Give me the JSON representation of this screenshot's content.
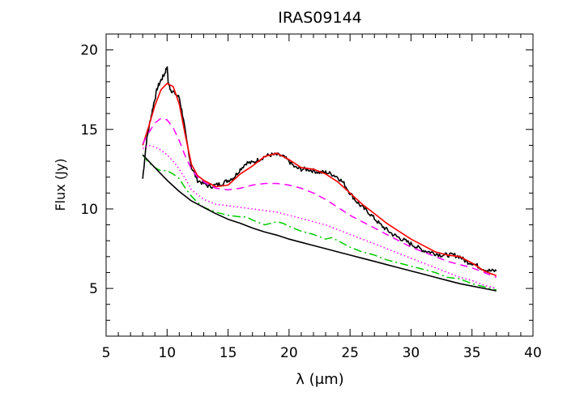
{
  "chart_data": {
    "type": "line",
    "title": "IRAS09144",
    "xlabel": "λ (μm)",
    "ylabel": "Flux (Jy)",
    "xlim": [
      5,
      40
    ],
    "ylim": [
      2,
      21
    ],
    "xticks": [
      5,
      10,
      15,
      20,
      25,
      30,
      35,
      40
    ],
    "yticks": [
      5,
      10,
      15,
      20
    ],
    "grid": false,
    "legend": "none",
    "series": [
      {
        "color": "#000000",
        "style": "solid",
        "noisy": true,
        "x": [
          8.0,
          8.3,
          8.6,
          8.9,
          9.2,
          9.5,
          9.8,
          10.0,
          10.1,
          10.3,
          10.6,
          11.0,
          11.3,
          11.6,
          12.0,
          12.5,
          13.0,
          13.5,
          14.0,
          14.5,
          15.0,
          15.5,
          16.0,
          16.5,
          17.0,
          17.5,
          18.0,
          18.5,
          19.0,
          19.5,
          20.0,
          20.5,
          21.0,
          21.5,
          22.0,
          22.5,
          23.0,
          23.5,
          24.0,
          24.5,
          25.0,
          25.5,
          26.0,
          26.5,
          27.0,
          27.5,
          28.0,
          28.5,
          29.0,
          29.5,
          30.0,
          30.5,
          31.0,
          31.5,
          32.0,
          32.5,
          33.0,
          33.5,
          34.0,
          34.5,
          35.0,
          35.5,
          36.0,
          36.5,
          37.0
        ],
        "y": [
          11.9,
          14.2,
          15.5,
          16.6,
          17.6,
          18.1,
          18.5,
          19.0,
          17.9,
          17.5,
          17.3,
          17.0,
          15.8,
          14.3,
          12.6,
          11.8,
          11.6,
          11.4,
          11.5,
          11.6,
          11.8,
          12.0,
          12.5,
          12.9,
          12.9,
          13.1,
          13.3,
          13.4,
          13.4,
          13.3,
          13.0,
          12.6,
          12.5,
          12.5,
          12.4,
          12.3,
          12.3,
          12.2,
          12.0,
          11.6,
          11.0,
          10.5,
          10.1,
          9.8,
          9.4,
          9.0,
          8.7,
          8.4,
          8.2,
          8.0,
          7.8,
          7.6,
          7.4,
          7.3,
          7.2,
          7.1,
          7.1,
          7.1,
          7.0,
          6.7,
          6.6,
          6.4,
          6.2,
          6.1,
          6.1
        ]
      },
      {
        "color": "#ff0000",
        "style": "solid",
        "x": [
          8.0,
          8.5,
          9.0,
          9.5,
          10.0,
          10.5,
          11.0,
          11.5,
          12.0,
          12.5,
          13.0,
          14.0,
          15.0,
          16.0,
          17.0,
          18.0,
          19.0,
          20.0,
          21.0,
          22.0,
          23.0,
          24.0,
          25.0,
          26.0,
          27.0,
          28.0,
          29.0,
          30.0,
          31.0,
          32.0,
          33.0,
          34.0,
          35.0,
          36.0,
          37.0
        ],
        "y": [
          14.0,
          15.2,
          16.5,
          17.5,
          17.9,
          17.7,
          16.6,
          14.6,
          12.8,
          12.1,
          11.8,
          11.4,
          11.5,
          12.2,
          12.7,
          13.3,
          13.5,
          13.1,
          12.6,
          12.5,
          12.2,
          11.7,
          11.0,
          10.3,
          9.7,
          9.1,
          8.6,
          8.1,
          7.7,
          7.3,
          7.1,
          7.0,
          6.6,
          6.1,
          5.8
        ]
      },
      {
        "color": "#ff00ff",
        "style": "dashed",
        "x": [
          8.0,
          8.5,
          9.0,
          9.5,
          10.0,
          10.5,
          11.0,
          11.5,
          12.0,
          12.5,
          13.0,
          14.0,
          15.0,
          16.0,
          17.0,
          18.0,
          19.0,
          20.0,
          21.0,
          22.0,
          23.0,
          24.0,
          25.0,
          26.0,
          27.0,
          28.0,
          29.0,
          30.0,
          31.0,
          32.0,
          33.0,
          34.0,
          35.0,
          36.0,
          37.0
        ],
        "y": [
          14.1,
          14.8,
          15.4,
          15.7,
          15.6,
          15.1,
          14.3,
          13.3,
          12.5,
          12.0,
          11.7,
          11.3,
          11.2,
          11.3,
          11.5,
          11.6,
          11.6,
          11.5,
          11.3,
          11.0,
          10.6,
          10.1,
          9.6,
          9.2,
          8.8,
          8.4,
          8.0,
          7.6,
          7.3,
          7.0,
          6.7,
          6.5,
          6.3,
          6.0,
          5.7
        ]
      },
      {
        "color": "#ff00ff",
        "style": "dotted",
        "x": [
          8.0,
          8.5,
          9.0,
          9.5,
          10.0,
          10.5,
          11.0,
          11.5,
          12.0,
          13.0,
          14.0,
          15.0,
          16.0,
          17.0,
          18.0,
          19.0,
          20.0,
          21.0,
          22.0,
          23.0,
          24.0,
          25.0,
          26.0,
          27.0,
          28.0,
          29.0,
          30.0,
          31.0,
          32.0,
          33.0,
          34.0,
          35.0,
          36.0,
          37.0
        ],
        "y": [
          13.8,
          14.0,
          13.9,
          13.7,
          13.4,
          13.0,
          12.5,
          11.9,
          11.2,
          10.6,
          10.3,
          10.2,
          10.1,
          10.0,
          9.9,
          9.8,
          9.6,
          9.4,
          9.2,
          9.0,
          8.7,
          8.4,
          8.1,
          7.8,
          7.5,
          7.2,
          6.9,
          6.6,
          6.3,
          6.0,
          5.7,
          5.5,
          5.2,
          5.0
        ]
      },
      {
        "color": "#00cc00",
        "style": "dashdot",
        "x": [
          8.0,
          8.5,
          9.0,
          9.5,
          10.0,
          10.5,
          11.0,
          11.5,
          12.0,
          12.5,
          13.0,
          14.0,
          15.0,
          16.0,
          16.5,
          17.0,
          18.0,
          19.0,
          19.5,
          20.0,
          21.0,
          22.0,
          23.0,
          23.5,
          24.0,
          25.0,
          26.0,
          27.0,
          28.0,
          29.0,
          30.0,
          31.0,
          32.0,
          33.0,
          34.0,
          35.0,
          36.0,
          37.0
        ],
        "y": [
          13.4,
          12.9,
          12.6,
          12.4,
          12.4,
          12.2,
          11.9,
          11.3,
          10.8,
          10.4,
          10.1,
          9.8,
          9.6,
          9.5,
          9.5,
          9.3,
          9.0,
          9.2,
          9.1,
          8.9,
          8.6,
          8.4,
          8.1,
          8.2,
          8.0,
          7.6,
          7.3,
          7.1,
          6.8,
          6.6,
          6.4,
          6.2,
          6.0,
          5.7,
          5.6,
          5.3,
          5.1,
          4.9
        ]
      },
      {
        "color": "#000000",
        "style": "solid",
        "x": [
          8.0,
          9.0,
          10.0,
          11.0,
          12.0,
          13.0,
          14.0,
          15.0,
          16.0,
          17.0,
          18.0,
          19.0,
          20.0,
          21.0,
          22.0,
          23.0,
          24.0,
          25.0,
          26.0,
          27.0,
          28.0,
          29.0,
          30.0,
          31.0,
          32.0,
          33.0,
          34.0,
          35.0,
          36.0,
          37.0
        ],
        "y": [
          13.4,
          12.6,
          11.8,
          11.1,
          10.5,
          10.1,
          9.7,
          9.35,
          9.1,
          8.8,
          8.55,
          8.35,
          8.1,
          7.9,
          7.7,
          7.5,
          7.3,
          7.1,
          6.9,
          6.7,
          6.5,
          6.3,
          6.1,
          5.9,
          5.7,
          5.5,
          5.3,
          5.15,
          5.0,
          4.85
        ]
      }
    ]
  }
}
